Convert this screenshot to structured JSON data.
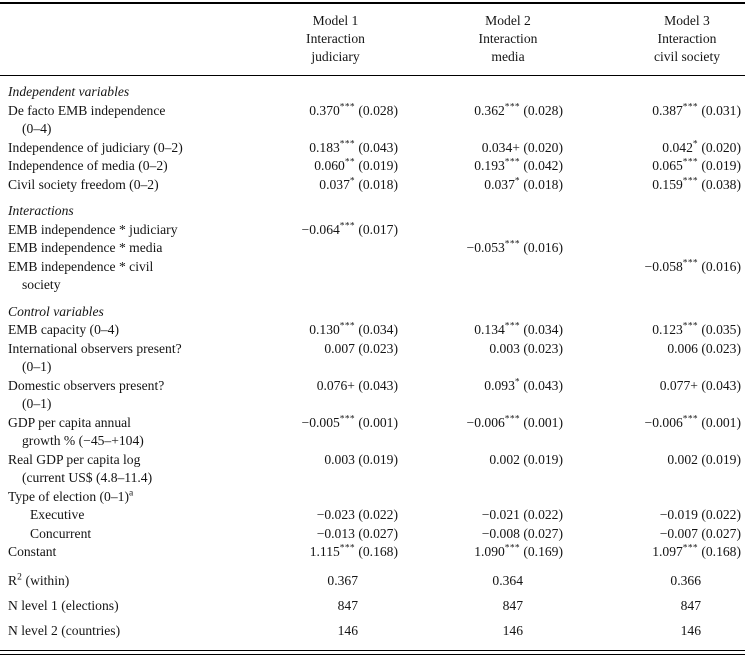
{
  "table": {
    "header": {
      "models": [
        {
          "lines": [
            "Model 1",
            "Interaction",
            "judiciary"
          ]
        },
        {
          "lines": [
            "Model 2",
            "Interaction",
            "media"
          ]
        },
        {
          "lines": [
            "Model 3",
            "Interaction",
            "civil society"
          ]
        }
      ]
    },
    "sections": {
      "independent": "Independent variables",
      "interactions": "Interactions",
      "controls": "Control variables"
    },
    "rows": {
      "defacto": {
        "label": "De facto EMB independence",
        "label2": "(0–4)",
        "m1": {
          "v": "0.370",
          "s": "***",
          "se": "(0.028)"
        },
        "m2": {
          "v": "0.362",
          "s": "***",
          "se": "(0.028)"
        },
        "m3": {
          "v": "0.387",
          "s": "***",
          "se": "(0.031)"
        }
      },
      "judiciary": {
        "label": "Independence of judiciary (0–2)",
        "m1": {
          "v": "0.183",
          "s": "***",
          "se": "(0.043)"
        },
        "m2": {
          "v": "0.034+",
          "s": "",
          "se": "(0.020)"
        },
        "m3": {
          "v": "0.042",
          "s": "*",
          "se": "(0.020)"
        }
      },
      "media": {
        "label": "Independence of media (0–2)",
        "m1": {
          "v": "0.060",
          "s": "**",
          "se": "(0.019)"
        },
        "m2": {
          "v": "0.193",
          "s": "***",
          "se": "(0.042)"
        },
        "m3": {
          "v": "0.065",
          "s": "***",
          "se": "(0.019)"
        }
      },
      "civil": {
        "label": "Civil society freedom (0–2)",
        "m1": {
          "v": "0.037",
          "s": "*",
          "se": "(0.018)"
        },
        "m2": {
          "v": "0.037",
          "s": "*",
          "se": "(0.018)"
        },
        "m3": {
          "v": "0.159",
          "s": "***",
          "se": "(0.038)"
        }
      },
      "int_judiciary": {
        "label": "EMB independence * judiciary",
        "m1": {
          "v": "−0.064",
          "s": "***",
          "se": "(0.017)"
        }
      },
      "int_media": {
        "label": "EMB independence * media",
        "m2": {
          "v": "−0.053",
          "s": "***",
          "se": "(0.016)"
        }
      },
      "int_civil": {
        "label": "EMB independence * civil",
        "label2": "society",
        "m3": {
          "v": "−0.058",
          "s": "***",
          "se": "(0.016)"
        }
      },
      "capacity": {
        "label": "EMB capacity (0–4)",
        "m1": {
          "v": "0.130",
          "s": "***",
          "se": "(0.034)"
        },
        "m2": {
          "v": "0.134",
          "s": "***",
          "se": "(0.034)"
        },
        "m3": {
          "v": "0.123",
          "s": "***",
          "se": "(0.035)"
        }
      },
      "intl_obs": {
        "label": "International observers present?",
        "label2": "(0–1)",
        "m1": {
          "v": "0.007",
          "s": "",
          "se": "(0.023)"
        },
        "m2": {
          "v": "0.003",
          "s": "",
          "se": "(0.023)"
        },
        "m3": {
          "v": "0.006",
          "s": "",
          "se": "(0.023)"
        }
      },
      "dom_obs": {
        "label": "Domestic observers present?",
        "label2": "(0–1)",
        "m1": {
          "v": "0.076+",
          "s": "",
          "se": "(0.043)"
        },
        "m2": {
          "v": "0.093",
          "s": "*",
          "se": "(0.043)"
        },
        "m3": {
          "v": "0.077+",
          "s": "",
          "se": "(0.043)"
        }
      },
      "gdp_growth": {
        "label": "GDP per capita annual",
        "label2": "growth % (−45–+104)",
        "m1": {
          "v": "−0.005",
          "s": "***",
          "se": "(0.001)"
        },
        "m2": {
          "v": "−0.006",
          "s": "***",
          "se": "(0.001)"
        },
        "m3": {
          "v": "−0.006",
          "s": "***",
          "se": "(0.001)"
        }
      },
      "real_gdp": {
        "label": "Real GDP per capita log",
        "label2": "(current US$ (4.8–11.4)",
        "m1": {
          "v": "0.003",
          "s": "",
          "se": "(0.019)"
        },
        "m2": {
          "v": "0.002",
          "s": "",
          "se": "(0.019)"
        },
        "m3": {
          "v": "0.002",
          "s": "",
          "se": "(0.019)"
        }
      },
      "type_election": {
        "label": "Type of election (0–1)",
        "sup": "a"
      },
      "executive": {
        "label": "Executive",
        "m1": {
          "v": "−0.023",
          "s": "",
          "se": "(0.022)"
        },
        "m2": {
          "v": "−0.021",
          "s": "",
          "se": "(0.022)"
        },
        "m3": {
          "v": "−0.019",
          "s": "",
          "se": "(0.022)"
        }
      },
      "concurrent": {
        "label": "Concurrent",
        "m1": {
          "v": "−0.013",
          "s": "",
          "se": "(0.027)"
        },
        "m2": {
          "v": "−0.008",
          "s": "",
          "se": "(0.027)"
        },
        "m3": {
          "v": "−0.007",
          "s": "",
          "se": "(0.027)"
        }
      },
      "constant": {
        "label": "Constant",
        "m1": {
          "v": "1.115",
          "s": "***",
          "se": "(0.168)"
        },
        "m2": {
          "v": "1.090",
          "s": "***",
          "se": "(0.169)"
        },
        "m3": {
          "v": "1.097",
          "s": "***",
          "se": "(0.168)"
        }
      }
    },
    "stats": {
      "r2": {
        "pre": "R",
        "sup": "2",
        "post": " (within)",
        "m1": "0.367",
        "m2": "0.364",
        "m3": "0.366"
      },
      "n1": {
        "label": "N level 1 (elections)",
        "m1": "847",
        "m2": "847",
        "m3": "847"
      },
      "n2": {
        "label": "N level 2 (countries)",
        "m1": "146",
        "m2": "146",
        "m3": "146"
      }
    }
  }
}
